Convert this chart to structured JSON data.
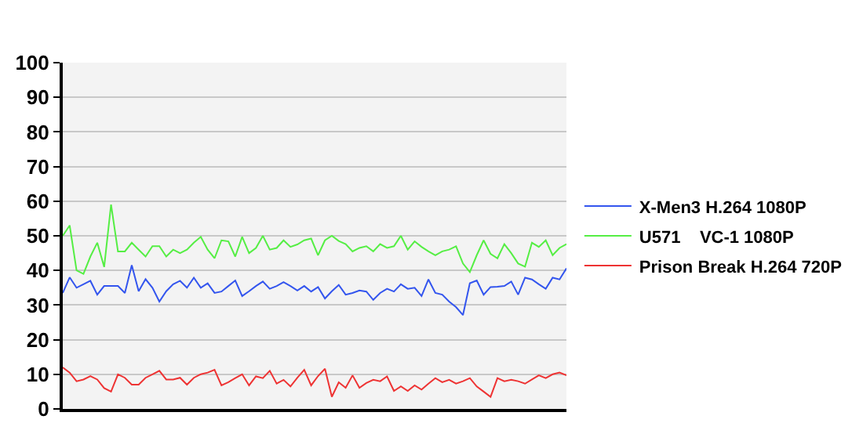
{
  "chart_data": {
    "type": "line",
    "legend": "right",
    "grid": "y",
    "tick_labels": "y",
    "marker": "none",
    "line_style": "solid",
    "categories": [
      null,
      null,
      null,
      null,
      null,
      null,
      null,
      null,
      null,
      null,
      null,
      null,
      null,
      null,
      null,
      null,
      null,
      null,
      null,
      null,
      null,
      null,
      null,
      null,
      null,
      null,
      null,
      null,
      null,
      null,
      null,
      null,
      null,
      null,
      null,
      null,
      null,
      null,
      null,
      null,
      null,
      null,
      null,
      null,
      null,
      null,
      null,
      null,
      null,
      null,
      null,
      null,
      null,
      null,
      null,
      null,
      null,
      null,
      null,
      null,
      null,
      null,
      null,
      null,
      null,
      null,
      null,
      null,
      null,
      null,
      null,
      null,
      null,
      null
    ],
    "ylim": [
      0,
      100
    ],
    "yticks": [
      0,
      10,
      20,
      30,
      40,
      50,
      60,
      70,
      80,
      90,
      100
    ],
    "series": [
      {
        "name": "X-Men3 H.264 1080P",
        "color": "#3355ee",
        "values": [
          33.5,
          38,
          35,
          36,
          37,
          33,
          35.5,
          35.5,
          35.5,
          33.5,
          41.5,
          34,
          37.5,
          35,
          31,
          34,
          36,
          37,
          35,
          37.9,
          35,
          36.3,
          33.5,
          33.9,
          35.5,
          37.1,
          32.6,
          34,
          35.5,
          36.8,
          34.7,
          35.5,
          36.6,
          35.5,
          34.2,
          35.5,
          33.9,
          35.2,
          31.9,
          34,
          35.8,
          33,
          33.5,
          34.2,
          33.9,
          31.5,
          33.5,
          34.7,
          33.9,
          36,
          34.7,
          35,
          32.6,
          37.4,
          33.5,
          33,
          31,
          29.4,
          27.1,
          36.3,
          37.1,
          33,
          35.2,
          35.3,
          35.5,
          36.8,
          33,
          37.9,
          37.4,
          36,
          34.7,
          37.9,
          37.4,
          40.6
        ]
      },
      {
        "name": "U571    VC-1 1080P",
        "color": "#55ee44",
        "values": [
          50,
          53,
          40,
          39,
          44,
          48,
          41,
          59,
          45.5,
          45.5,
          48,
          46,
          44,
          47,
          47,
          44,
          46,
          45,
          46,
          48,
          49.7,
          46,
          43.5,
          48.7,
          48.4,
          44,
          49.7,
          45,
          46.5,
          50,
          46,
          46.5,
          48.7,
          46.8,
          47.5,
          48.7,
          49.2,
          44.4,
          48.7,
          50,
          48.5,
          47.6,
          45.5,
          46.5,
          47,
          45.5,
          47.6,
          46.5,
          47,
          50,
          46,
          48.4,
          46.8,
          45.5,
          44.4,
          45.5,
          46,
          47,
          42,
          39.5,
          44.4,
          48.7,
          44.8,
          43.5,
          47.6,
          45,
          42,
          41.1,
          48,
          46.8,
          48.7,
          44.4,
          46.5,
          47.6
        ]
      },
      {
        "name": "Prison Break H.264 720P",
        "color": "#ee3333",
        "values": [
          12,
          10.5,
          8,
          8.5,
          9.5,
          8.5,
          6,
          5,
          10,
          9,
          7,
          7,
          9,
          10,
          11,
          8.5,
          8.5,
          9,
          7,
          9,
          10,
          10.5,
          11.3,
          6.8,
          7.7,
          8.9,
          10,
          6.8,
          9.4,
          8.9,
          11,
          7.3,
          8.4,
          6.5,
          9,
          11.3,
          6.8,
          9.5,
          11.6,
          3.5,
          7.7,
          6.1,
          9.7,
          6.1,
          7.5,
          8.4,
          8,
          9.4,
          5.2,
          6.5,
          5.2,
          6.8,
          5.6,
          7.3,
          8.9,
          7.7,
          8.4,
          7.3,
          8,
          8.9,
          6.5,
          5,
          3.5,
          8.9,
          8,
          8.4,
          8,
          7.3,
          8.5,
          9.7,
          8.9,
          10,
          10.5,
          9.7
        ]
      }
    ]
  }
}
